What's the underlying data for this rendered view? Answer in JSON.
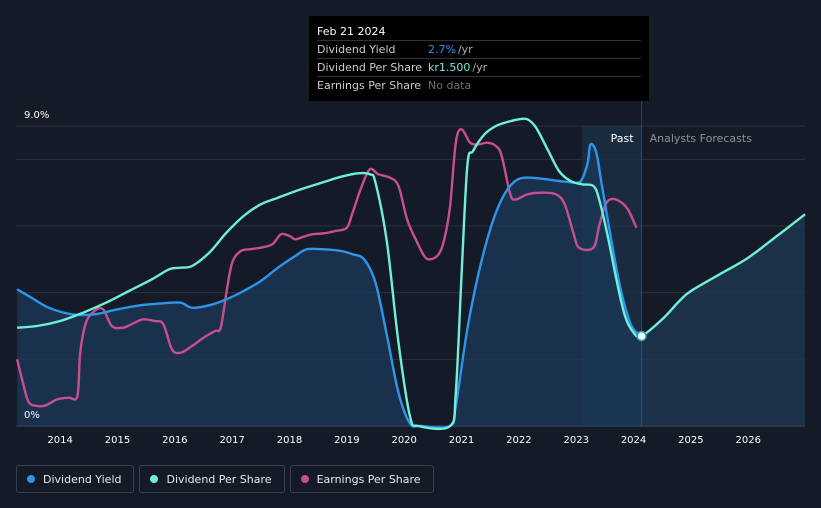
{
  "tooltip": {
    "date": "Feb 21 2024",
    "rows": [
      {
        "name": "Dividend Yield",
        "value": "2.7%",
        "unit": "/yr",
        "color": "#2d95ec"
      },
      {
        "name": "Dividend Per Share",
        "value": "kr1.500",
        "unit": "/yr",
        "color": "#6ff0d6"
      },
      {
        "name": "Earnings Per Share",
        "value": "No data",
        "unit": "",
        "color": "#6b7079"
      }
    ]
  },
  "regions": {
    "past": "Past",
    "forecast": "Analysts Forecasts"
  },
  "legend": [
    {
      "label": "Dividend Yield",
      "color": "#2d95ec"
    },
    {
      "label": "Dividend Per Share",
      "color": "#6ff0d6"
    },
    {
      "label": "Earnings Per Share",
      "color": "#c84e8f"
    }
  ],
  "chart_data": {
    "type": "line",
    "title": "",
    "xlabel": "",
    "ylabel": "",
    "y_tick_labels": [
      "9.0%",
      "0%"
    ],
    "x_tick_labels": [
      "2014",
      "2015",
      "2016",
      "2017",
      "2018",
      "2019",
      "2020",
      "2021",
      "2022",
      "2023",
      "2024",
      "2025",
      "2026"
    ],
    "xlim": [
      2013.23,
      2026.99
    ],
    "ylim": [
      0,
      9.0
    ],
    "grid": true,
    "legend_position": "bottom",
    "current_point": {
      "x": 2024.14,
      "y": 2.7
    },
    "past_end": 2024.14,
    "shaded_region": [
      2023.1,
      2024.14
    ],
    "series": [
      {
        "name": "Dividend Yield",
        "color": "#2d95ec",
        "fill": true,
        "points": [
          [
            2013.25,
            4.1
          ],
          [
            2013.5,
            3.85
          ],
          [
            2013.8,
            3.55
          ],
          [
            2014.2,
            3.35
          ],
          [
            2014.6,
            3.35
          ],
          [
            2015.0,
            3.5
          ],
          [
            2015.4,
            3.62
          ],
          [
            2015.8,
            3.68
          ],
          [
            2016.1,
            3.7
          ],
          [
            2016.3,
            3.55
          ],
          [
            2016.6,
            3.62
          ],
          [
            2016.9,
            3.8
          ],
          [
            2017.2,
            4.05
          ],
          [
            2017.5,
            4.35
          ],
          [
            2017.8,
            4.75
          ],
          [
            2018.1,
            5.1
          ],
          [
            2018.3,
            5.3
          ],
          [
            2018.6,
            5.3
          ],
          [
            2018.9,
            5.25
          ],
          [
            2019.1,
            5.15
          ],
          [
            2019.3,
            5.0
          ],
          [
            2019.5,
            4.3
          ],
          [
            2019.7,
            2.7
          ],
          [
            2019.9,
            1.0
          ],
          [
            2020.1,
            0.08
          ],
          [
            2020.3,
            0.0
          ],
          [
            2020.8,
            0.0
          ],
          [
            2020.9,
            0.6
          ],
          [
            2021.1,
            2.9
          ],
          [
            2021.3,
            4.6
          ],
          [
            2021.5,
            5.9
          ],
          [
            2021.7,
            6.8
          ],
          [
            2021.9,
            7.3
          ],
          [
            2022.1,
            7.45
          ],
          [
            2022.4,
            7.42
          ],
          [
            2022.7,
            7.35
          ],
          [
            2023.0,
            7.3
          ],
          [
            2023.1,
            7.4
          ],
          [
            2023.2,
            7.9
          ],
          [
            2023.25,
            8.45
          ],
          [
            2023.35,
            8.2
          ],
          [
            2023.45,
            7.2
          ],
          [
            2023.6,
            5.7
          ],
          [
            2023.75,
            4.3
          ],
          [
            2023.9,
            3.3
          ],
          [
            2024.0,
            2.9
          ],
          [
            2024.14,
            2.7
          ]
        ]
      },
      {
        "name": "Dividend Per Share",
        "color": "#6ff0d6",
        "fill": false,
        "points": [
          [
            2013.25,
            2.95
          ],
          [
            2013.6,
            3.0
          ],
          [
            2014.0,
            3.15
          ],
          [
            2014.4,
            3.4
          ],
          [
            2014.8,
            3.7
          ],
          [
            2015.2,
            4.05
          ],
          [
            2015.6,
            4.4
          ],
          [
            2015.9,
            4.7
          ],
          [
            2016.1,
            4.75
          ],
          [
            2016.3,
            4.8
          ],
          [
            2016.6,
            5.2
          ],
          [
            2016.9,
            5.8
          ],
          [
            2017.2,
            6.3
          ],
          [
            2017.5,
            6.65
          ],
          [
            2017.8,
            6.85
          ],
          [
            2018.2,
            7.1
          ],
          [
            2018.6,
            7.32
          ],
          [
            2018.9,
            7.48
          ],
          [
            2019.2,
            7.58
          ],
          [
            2019.4,
            7.55
          ],
          [
            2019.5,
            7.3
          ],
          [
            2019.7,
            5.5
          ],
          [
            2019.9,
            2.5
          ],
          [
            2020.1,
            0.3
          ],
          [
            2020.25,
            0.0
          ],
          [
            2020.8,
            0.0
          ],
          [
            2020.9,
            1.0
          ],
          [
            2021.0,
            4.5
          ],
          [
            2021.1,
            7.8
          ],
          [
            2021.2,
            8.25
          ],
          [
            2021.4,
            8.75
          ],
          [
            2021.6,
            9.0
          ],
          [
            2021.8,
            9.12
          ],
          [
            2022.0,
            9.2
          ],
          [
            2022.15,
            9.2
          ],
          [
            2022.3,
            8.95
          ],
          [
            2022.5,
            8.3
          ],
          [
            2022.7,
            7.65
          ],
          [
            2022.9,
            7.35
          ],
          [
            2023.1,
            7.25
          ],
          [
            2023.3,
            7.2
          ],
          [
            2023.4,
            6.8
          ],
          [
            2023.55,
            5.7
          ],
          [
            2023.7,
            4.4
          ],
          [
            2023.85,
            3.3
          ],
          [
            2024.0,
            2.8
          ],
          [
            2024.14,
            2.7
          ],
          [
            2024.5,
            3.2
          ],
          [
            2024.8,
            3.75
          ],
          [
            2025.0,
            4.05
          ],
          [
            2025.5,
            4.55
          ],
          [
            2026.0,
            5.05
          ],
          [
            2026.5,
            5.7
          ],
          [
            2026.99,
            6.35
          ]
        ]
      },
      {
        "name": "Earnings Per Share",
        "color": "#c84e8f",
        "fill": false,
        "points": [
          [
            2013.25,
            2.0
          ],
          [
            2013.35,
            1.3
          ],
          [
            2013.45,
            0.72
          ],
          [
            2013.6,
            0.6
          ],
          [
            2013.75,
            0.62
          ],
          [
            2013.95,
            0.8
          ],
          [
            2014.15,
            0.85
          ],
          [
            2014.3,
            0.9
          ],
          [
            2014.35,
            2.2
          ],
          [
            2014.45,
            3.1
          ],
          [
            2014.6,
            3.45
          ],
          [
            2014.75,
            3.5
          ],
          [
            2014.9,
            3.0
          ],
          [
            2015.1,
            2.95
          ],
          [
            2015.3,
            3.1
          ],
          [
            2015.45,
            3.2
          ],
          [
            2015.65,
            3.15
          ],
          [
            2015.8,
            3.05
          ],
          [
            2015.95,
            2.3
          ],
          [
            2016.1,
            2.2
          ],
          [
            2016.3,
            2.4
          ],
          [
            2016.5,
            2.65
          ],
          [
            2016.7,
            2.85
          ],
          [
            2016.8,
            2.95
          ],
          [
            2016.9,
            4.0
          ],
          [
            2017.0,
            4.9
          ],
          [
            2017.15,
            5.25
          ],
          [
            2017.3,
            5.3
          ],
          [
            2017.5,
            5.35
          ],
          [
            2017.7,
            5.45
          ],
          [
            2017.85,
            5.75
          ],
          [
            2018.0,
            5.7
          ],
          [
            2018.1,
            5.6
          ],
          [
            2018.25,
            5.68
          ],
          [
            2018.4,
            5.75
          ],
          [
            2018.6,
            5.78
          ],
          [
            2018.8,
            5.85
          ],
          [
            2019.0,
            5.95
          ],
          [
            2019.1,
            6.4
          ],
          [
            2019.25,
            7.15
          ],
          [
            2019.4,
            7.7
          ],
          [
            2019.55,
            7.55
          ],
          [
            2019.75,
            7.45
          ],
          [
            2019.9,
            7.2
          ],
          [
            2020.05,
            6.2
          ],
          [
            2020.2,
            5.6
          ],
          [
            2020.35,
            5.1
          ],
          [
            2020.45,
            5.0
          ],
          [
            2020.6,
            5.15
          ],
          [
            2020.7,
            5.6
          ],
          [
            2020.8,
            6.6
          ],
          [
            2020.9,
            8.5
          ],
          [
            2021.0,
            8.9
          ],
          [
            2021.15,
            8.5
          ],
          [
            2021.3,
            8.45
          ],
          [
            2021.45,
            8.5
          ],
          [
            2021.6,
            8.4
          ],
          [
            2021.7,
            8.1
          ],
          [
            2021.85,
            6.95
          ],
          [
            2021.95,
            6.8
          ],
          [
            2022.15,
            6.95
          ],
          [
            2022.4,
            7.0
          ],
          [
            2022.65,
            6.95
          ],
          [
            2022.8,
            6.65
          ],
          [
            2022.95,
            5.8
          ],
          [
            2023.05,
            5.35
          ],
          [
            2023.3,
            5.35
          ],
          [
            2023.4,
            6.0
          ],
          [
            2023.5,
            6.6
          ],
          [
            2023.6,
            6.8
          ],
          [
            2023.75,
            6.75
          ],
          [
            2023.9,
            6.5
          ],
          [
            2024.05,
            5.95
          ]
        ]
      }
    ]
  }
}
